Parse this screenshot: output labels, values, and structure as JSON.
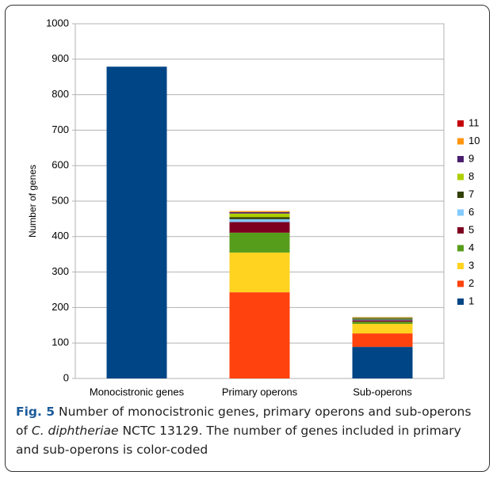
{
  "chart_data": {
    "type": "stacked-bar",
    "y_label": "Number of genes",
    "categories": [
      "Monocistronic genes",
      "Primary operons",
      "Sub-operons"
    ],
    "series": [
      {
        "name": "1",
        "color": "#004586",
        "values": [
          879,
          0,
          89
        ]
      },
      {
        "name": "2",
        "color": "#ff420e",
        "values": [
          0,
          243,
          38
        ]
      },
      {
        "name": "3",
        "color": "#ffd320",
        "values": [
          0,
          112,
          27
        ]
      },
      {
        "name": "4",
        "color": "#579d1c",
        "values": [
          0,
          56,
          6
        ]
      },
      {
        "name": "5",
        "color": "#7e0021",
        "values": [
          0,
          30,
          4
        ]
      },
      {
        "name": "6",
        "color": "#83caff",
        "values": [
          0,
          8,
          2
        ]
      },
      {
        "name": "7",
        "color": "#314004",
        "values": [
          0,
          6,
          3
        ]
      },
      {
        "name": "8",
        "color": "#aecf00",
        "values": [
          0,
          10,
          2
        ]
      },
      {
        "name": "9",
        "color": "#4b1f6f",
        "values": [
          0,
          4,
          1
        ]
      },
      {
        "name": "10",
        "color": "#ff950e",
        "values": [
          0,
          3,
          1
        ]
      },
      {
        "name": "11",
        "color": "#c5000b",
        "values": [
          0,
          0,
          0
        ]
      }
    ],
    "ylim": [
      0,
      1000
    ],
    "yticks": [
      0,
      100,
      200,
      300,
      400,
      500,
      600,
      700,
      800,
      900,
      1000
    ],
    "grid": true,
    "legend": "right"
  },
  "caption": {
    "label": "Fig. 5",
    "parts": [
      " Number of monocistronic genes, primary operons and sub-operons of ",
      "C. diphtheriae",
      " NCTC 13129. The number of genes included in primary and sub-operons is color-coded"
    ]
  }
}
